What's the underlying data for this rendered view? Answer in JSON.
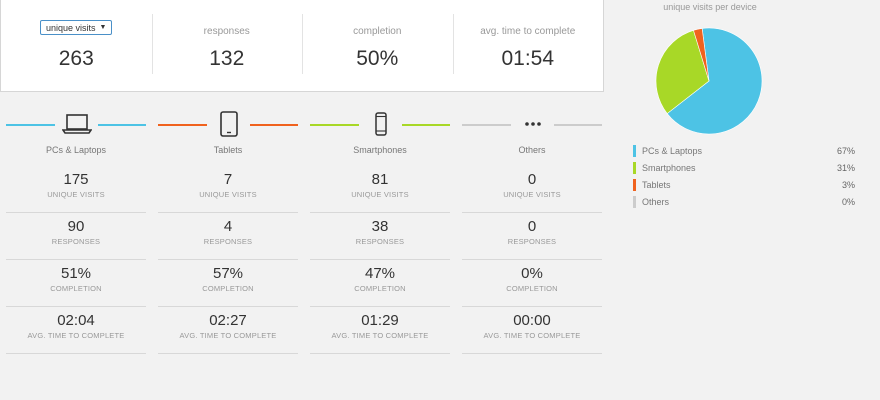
{
  "summary": {
    "metric_select": "unique visits",
    "metric_value": "263",
    "cells": [
      {
        "label": "responses",
        "value": "132"
      },
      {
        "label": "completion",
        "value": "50%"
      },
      {
        "label": "avg. time to complete",
        "value": "01:54"
      }
    ]
  },
  "devices": [
    {
      "name": "PCs & Laptops",
      "icon": "laptop-icon",
      "color": "#4dc3e5",
      "stats": [
        {
          "value": "175",
          "label": "UNIQUE VISITS"
        },
        {
          "value": "90",
          "label": "RESPONSES"
        },
        {
          "value": "51%",
          "label": "COMPLETION"
        },
        {
          "value": "02:04",
          "label": "AVG. TIME TO COMPLETE"
        }
      ]
    },
    {
      "name": "Tablets",
      "icon": "tablet-icon",
      "color": "#f0621e",
      "stats": [
        {
          "value": "7",
          "label": "UNIQUE VISITS"
        },
        {
          "value": "4",
          "label": "RESPONSES"
        },
        {
          "value": "57%",
          "label": "COMPLETION"
        },
        {
          "value": "02:27",
          "label": "AVG. TIME TO COMPLETE"
        }
      ]
    },
    {
      "name": "Smartphones",
      "icon": "smartphone-icon",
      "color": "#a8d827",
      "stats": [
        {
          "value": "81",
          "label": "UNIQUE VISITS"
        },
        {
          "value": "38",
          "label": "RESPONSES"
        },
        {
          "value": "47%",
          "label": "COMPLETION"
        },
        {
          "value": "01:29",
          "label": "AVG. TIME TO COMPLETE"
        }
      ]
    },
    {
      "name": "Others",
      "icon": "ellipsis-icon",
      "color": "#cccccc",
      "stats": [
        {
          "value": "0",
          "label": "UNIQUE VISITS"
        },
        {
          "value": "0",
          "label": "RESPONSES"
        },
        {
          "value": "0%",
          "label": "COMPLETION"
        },
        {
          "value": "00:00",
          "label": "AVG. TIME TO COMPLETE"
        }
      ]
    }
  ],
  "pie": {
    "title": "unique visits per device",
    "legend": [
      {
        "label": "PCs & Laptops",
        "pct": "67%",
        "color": "#4dc3e5"
      },
      {
        "label": "Smartphones",
        "pct": "31%",
        "color": "#a8d827"
      },
      {
        "label": "Tablets",
        "pct": "3%",
        "color": "#f0621e"
      },
      {
        "label": "Others",
        "pct": "0%",
        "color": "#cccccc"
      }
    ]
  },
  "chart_data": {
    "type": "pie",
    "title": "unique visits per device",
    "categories": [
      "PCs & Laptops",
      "Smartphones",
      "Tablets",
      "Others"
    ],
    "values": [
      175,
      81,
      7,
      0
    ],
    "colors": [
      "#4dc3e5",
      "#a8d827",
      "#f0621e",
      "#cccccc"
    ],
    "legend_position": "bottom"
  }
}
